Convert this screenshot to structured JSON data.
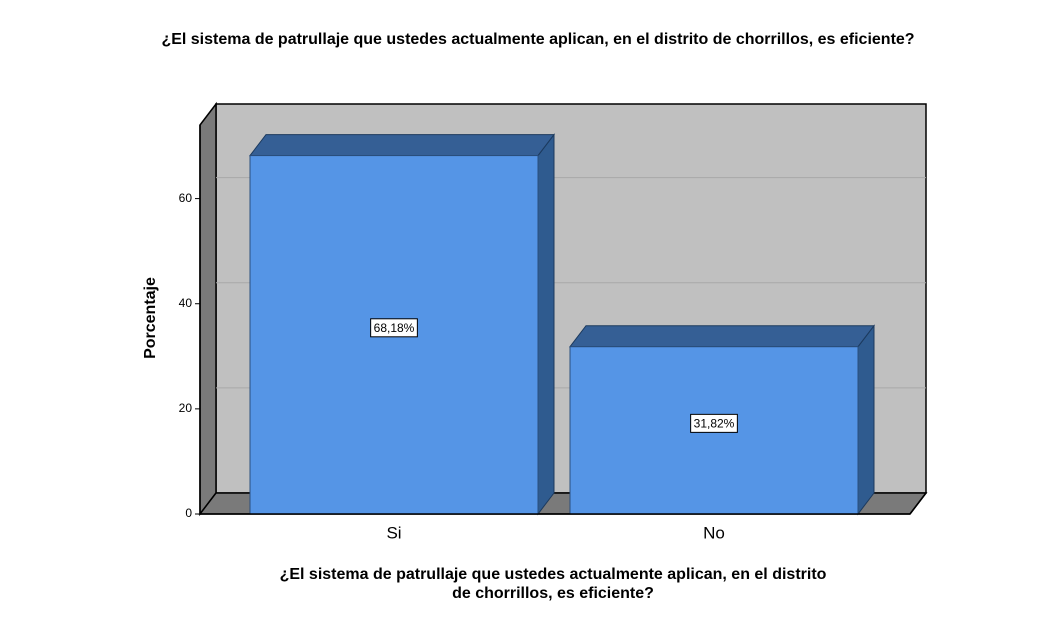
{
  "chart_data": {
    "type": "bar3d",
    "title": "¿El sistema de patrullaje que ustedes actualmente aplican, en el distrito de chorrillos, es eficiente?",
    "xlabel": [
      "¿El sistema de patrullaje que ustedes actualmente aplican, en el distrito",
      "de chorrillos, es eficiente?"
    ],
    "ylabel": "Porcentaje",
    "categories": [
      "Si",
      "No"
    ],
    "values": [
      68.18,
      31.82
    ],
    "value_labels": [
      "68,18%",
      "31,82%"
    ],
    "color": "#5595e6",
    "ylim": [
      0,
      74
    ],
    "yticks": [
      0,
      20,
      40,
      60
    ],
    "grid": true
  }
}
